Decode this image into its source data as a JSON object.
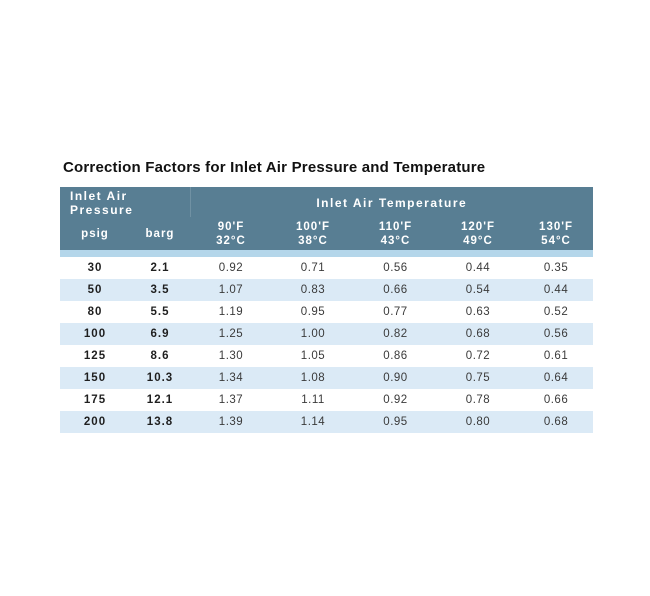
{
  "title": "Correction Factors for Inlet Air Pressure and Temperature",
  "table": {
    "group_headers": [
      {
        "label": "Inlet Air Pressure",
        "colspan": 2
      },
      {
        "label": "Inlet Air Temperature",
        "colspan": 5
      }
    ],
    "columns": [
      {
        "label": "psig"
      },
      {
        "label": "barg"
      },
      {
        "label_f": "90'F",
        "label_c": "32°C"
      },
      {
        "label_f": "100'F",
        "label_c": "38°C"
      },
      {
        "label_f": "110'F",
        "label_c": "43°C"
      },
      {
        "label_f": "120'F",
        "label_c": "49°C"
      },
      {
        "label_f": "130'F",
        "label_c": "54°C"
      }
    ],
    "rows": [
      {
        "psig": "30",
        "barg": "2.1",
        "values": [
          "0.92",
          "0.71",
          "0.56",
          "0.44",
          "0.35"
        ]
      },
      {
        "psig": "50",
        "barg": "3.5",
        "values": [
          "1.07",
          "0.83",
          "0.66",
          "0.54",
          "0.44"
        ]
      },
      {
        "psig": "80",
        "barg": "5.5",
        "values": [
          "1.19",
          "0.95",
          "0.77",
          "0.63",
          "0.52"
        ]
      },
      {
        "psig": "100",
        "barg": "6.9",
        "values": [
          "1.25",
          "1.00",
          "0.82",
          "0.68",
          "0.56"
        ]
      },
      {
        "psig": "125",
        "barg": "8.6",
        "values": [
          "1.30",
          "1.05",
          "0.86",
          "0.72",
          "0.61"
        ]
      },
      {
        "psig": "150",
        "barg": "10.3",
        "values": [
          "1.34",
          "1.08",
          "0.90",
          "0.75",
          "0.64"
        ]
      },
      {
        "psig": "175",
        "barg": "12.1",
        "values": [
          "1.37",
          "1.11",
          "0.92",
          "0.78",
          "0.66"
        ]
      },
      {
        "psig": "200",
        "barg": "13.8",
        "values": [
          "1.39",
          "1.14",
          "0.95",
          "0.80",
          "0.68"
        ]
      }
    ],
    "colors": {
      "header_bg": "#587e93",
      "header_text": "#ffffff",
      "row_alt_bg": "#dbeaf6",
      "spacer_bg": "#b4d6ea",
      "data_text": "#3a3a3a",
      "title_text": "#111111",
      "page_bg": "#ffffff"
    }
  }
}
